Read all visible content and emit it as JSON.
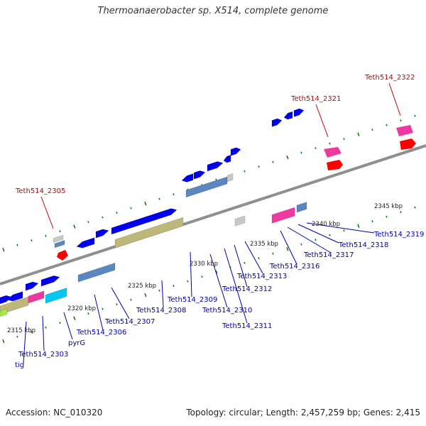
{
  "title": "Thermoanaerobacter sp. X514, complete genome",
  "footer": {
    "accession": "Accession: NC_010320",
    "stats": "Topology: circular; Length: 2,457,259 bp; Genes: 2,415"
  },
  "colors": {
    "backbone": "#8f8f8f",
    "tick": "#1e7a1e",
    "highlight_label": "#cc0000",
    "label": "#0000aa",
    "forward_gene": "#0000ee",
    "rrna": "#5b87c0",
    "cds_misc": "#bdb77a",
    "pseudo": "#c8c8c8",
    "pink": "#ee3aa0",
    "red": "#ff0000",
    "cyan": "#00c8f0",
    "lime": "#a6e84a"
  },
  "kbp_labels": [
    "2315 kbp",
    "2320 kbp",
    "2325 kbp",
    "2330 kbp",
    "2335 kbp",
    "2340 kbp",
    "2345 kbp"
  ],
  "gene_labels": {
    "highlighted": [
      "Teth514_2305",
      "Teth514_2321",
      "Teth514_2322"
    ],
    "regular": [
      "tig",
      "Teth514_2303",
      "pyrG",
      "Teth514_2306",
      "Teth514_2307",
      "Teth514_2308",
      "Teth514_2309",
      "Teth514_2310",
      "Teth514_2311",
      "Teth514_2312",
      "Teth514_2313",
      "Teth514_2316",
      "Teth514_2317",
      "Teth514_2318",
      "Teth514_2319"
    ]
  }
}
